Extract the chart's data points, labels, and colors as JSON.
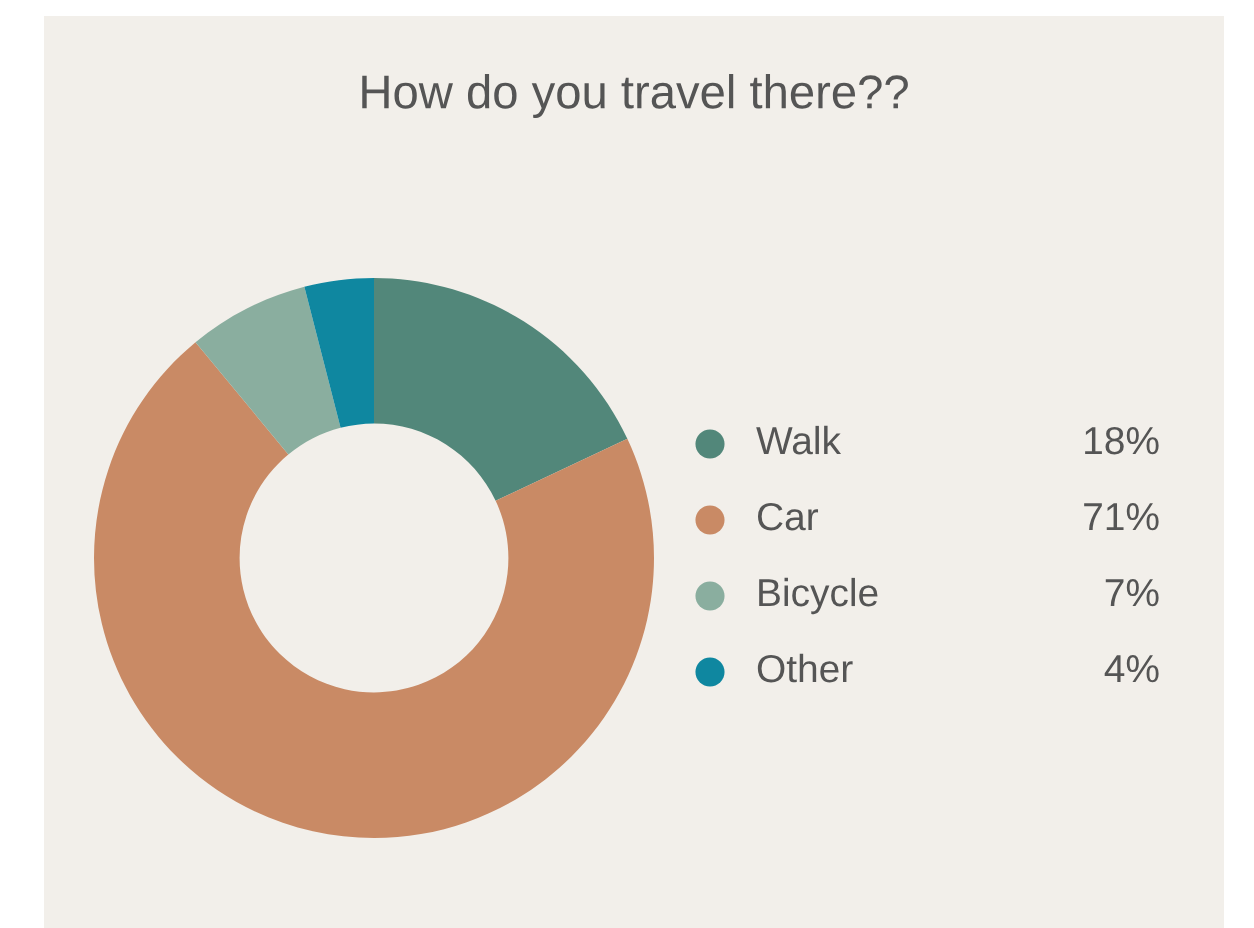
{
  "chart_data": {
    "type": "donut",
    "title": "How do you travel there??",
    "categories": [
      "Walk",
      "Car",
      "Bicycle",
      "Other"
    ],
    "values": [
      18,
      71,
      7,
      4
    ],
    "colors": [
      "#52877a",
      "#c98a65",
      "#8aae9f",
      "#0f87a0"
    ],
    "value_labels": [
      "18%",
      "71%",
      "7%",
      "4%"
    ],
    "legend": "right"
  }
}
